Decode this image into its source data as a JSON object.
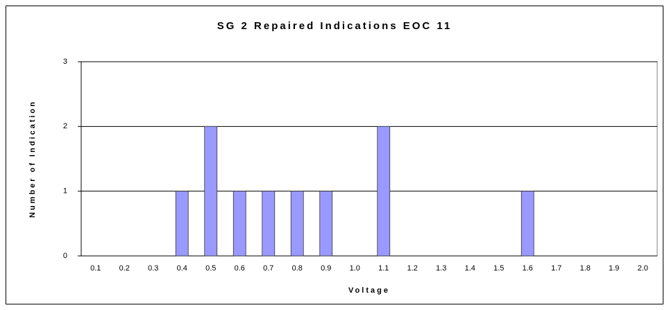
{
  "chart_data": {
    "type": "bar",
    "title": "SG 2 Repaired Indications EOC 11",
    "x_label": "Voltage",
    "y_label": "Number of Indication",
    "categories": [
      "0.1",
      "0.2",
      "0.3",
      "0.4",
      "0.5",
      "0.6",
      "0.7",
      "0.8",
      "0.9",
      "1.0",
      "1.1",
      "1.2",
      "1.3",
      "1.4",
      "1.5",
      "1.6",
      "1.7",
      "1.8",
      "1.9",
      "2.0"
    ],
    "values": [
      0,
      0,
      0,
      1,
      2,
      1,
      1,
      1,
      1,
      0,
      2,
      0,
      0,
      0,
      0,
      1,
      0,
      0,
      0,
      0
    ],
    "color": "#9999ff",
    "ylim": [
      0,
      3
    ],
    "yticks": [
      0,
      1,
      2,
      3
    ],
    "grid": true
  }
}
